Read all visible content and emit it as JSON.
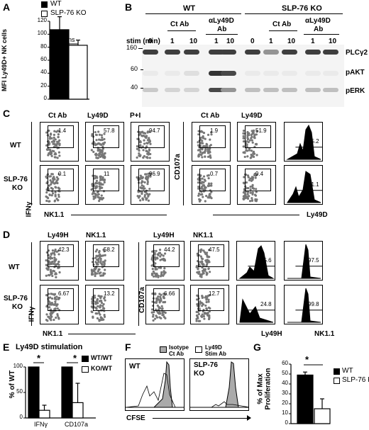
{
  "panels": {
    "A": "A",
    "B": "B",
    "C": "C",
    "D": "D",
    "E": "E",
    "F": "F",
    "G": "G"
  },
  "panelA": {
    "legend": [
      "WT",
      "SLP-76 KO"
    ],
    "ylabel": "MFI Ly49D+ NK cells",
    "yticks": [
      "0",
      "20",
      "40",
      "60",
      "80",
      "100",
      "120"
    ],
    "sig": "ns"
  },
  "panelB": {
    "group_wt": "WT",
    "group_ko": "SLP-76 KO",
    "ctab": "Ct Ab",
    "aly49d_1": "αLy49D",
    "aly49d_2": "Ab",
    "stim_label": "stim (min)",
    "lanes": [
      "0",
      "1",
      "10",
      "1",
      "10",
      "0",
      "1",
      "10",
      "1",
      "10"
    ],
    "mw": [
      "160",
      "60",
      "40"
    ],
    "proteins": [
      "PLCγ2",
      "pAKT",
      "pERK"
    ]
  },
  "panelC": {
    "cols": [
      "Ct Ab",
      "Ly49D",
      "P+I",
      "Ct Ab",
      "Ly49D"
    ],
    "wt": "WT",
    "ko1": "SLP-76",
    "ko2": "KO",
    "ifn": "IFNγ",
    "cd107a": "CD107a",
    "nk11": "NK1.1",
    "ly49d": "Ly49D",
    "wt_vals": [
      "1.4",
      "57.8",
      "94.7",
      "1.9",
      "51.9",
      "75.2"
    ],
    "ko_vals": [
      "0.1",
      "11",
      "96.9",
      "0.7",
      "9.4",
      "61.1"
    ]
  },
  "panelD": {
    "cols": [
      "Ly49H",
      "NK1.1",
      "Ly49H",
      "NK1.1"
    ],
    "wt": "WT",
    "ko1": "SLP-76",
    "ko2": "KO",
    "ifn": "IFNγ",
    "cd107a": "CD107a",
    "nk11": "NK1.1",
    "ly49h": "Ly49H",
    "nk11b": "NK1.1",
    "wt_vals": [
      "42.3",
      "58.2",
      "44.2",
      "47.5",
      "45.6",
      "97.5"
    ],
    "ko_vals": [
      "6.67",
      "13.2",
      "6.66",
      "12.7",
      "24.8",
      "99.8"
    ]
  },
  "panelE": {
    "title": "Ly49D stimulation",
    "legend": [
      "WT/WT",
      "KO/WT"
    ],
    "ylabel": "% of WT",
    "yticks": [
      "0",
      "50",
      "100"
    ],
    "groups": [
      "IFNγ",
      "CD107a"
    ],
    "sig": "*"
  },
  "panelF": {
    "legend": [
      "Isotype Ct Ab",
      "Ly49D Stim Ab"
    ],
    "legend_l1": [
      "Isotype",
      "Ct Ab"
    ],
    "legend_l2": [
      "Ly49D",
      "Stim Ab"
    ],
    "wt": "WT",
    "ko1": "SLP-76",
    "ko2": "KO",
    "xlabel": "CFSE"
  },
  "panelG": {
    "legend": [
      "WT",
      "SLP-76 KO"
    ],
    "ylabel1": "% of Max",
    "ylabel2": "Proliferation",
    "yticks": [
      "0",
      "10",
      "20",
      "30",
      "40",
      "50",
      "60"
    ],
    "sig": "*"
  },
  "chart_data": [
    {
      "type": "bar",
      "categories": [
        "WT",
        "SLP-76 KO"
      ],
      "values": [
        107,
        83
      ],
      "errors": [
        20,
        8
      ],
      "ylabel": "MFI Ly49D+ NK cells",
      "ylim": [
        0,
        120
      ]
    },
    {
      "type": "bar",
      "categories": [
        "IFNγ",
        "CD107a"
      ],
      "series": [
        {
          "name": "WT/WT",
          "values": [
            100,
            100
          ],
          "errors": [
            0,
            0
          ]
        },
        {
          "name": "KO/WT",
          "values": [
            15,
            30
          ],
          "errors": [
            10,
            38
          ]
        }
      ],
      "ylabel": "% of WT",
      "ylim": [
        0,
        100
      ]
    },
    {
      "type": "bar",
      "categories": [
        "WT",
        "SLP-76 KO"
      ],
      "values": [
        49,
        15
      ],
      "errors": [
        3,
        10
      ],
      "ylabel": "% of Max Proliferation",
      "ylim": [
        0,
        60
      ]
    }
  ]
}
